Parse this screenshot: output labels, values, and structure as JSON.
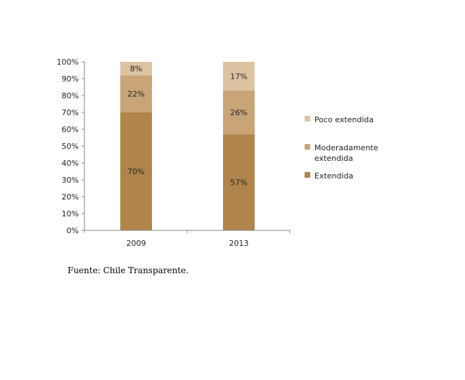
{
  "chart_data": {
    "type": "bar",
    "stacked": true,
    "categories": [
      "2009",
      "2013"
    ],
    "series": [
      {
        "name": "Extendida",
        "values": [
          70,
          57
        ],
        "labels": [
          "70%",
          "57%"
        ],
        "color": "#b0844a"
      },
      {
        "name": "Moderadamente extendida",
        "values": [
          22,
          26
        ],
        "labels": [
          "22%",
          "26%"
        ],
        "color": "#c9a477"
      },
      {
        "name": "Poco extendida",
        "values": [
          8,
          17
        ],
        "labels": [
          "8%",
          "17%"
        ],
        "color": "#dcc3a2"
      }
    ],
    "ylim": [
      0,
      100
    ],
    "yticks": [
      "0%",
      "10%",
      "20%",
      "30%",
      "40%",
      "50%",
      "60%",
      "70%",
      "80%",
      "90%",
      "100%"
    ],
    "grid": false,
    "legend_position": "right",
    "legend": [
      {
        "lines": [
          "Poco extendida"
        ],
        "series": 2
      },
      {
        "lines": [
          "Moderadamente",
          "extendida"
        ],
        "series": 1
      },
      {
        "lines": [
          "Extendida"
        ],
        "series": 0
      }
    ]
  },
  "source_text": "Fuente: Chile Transparente."
}
